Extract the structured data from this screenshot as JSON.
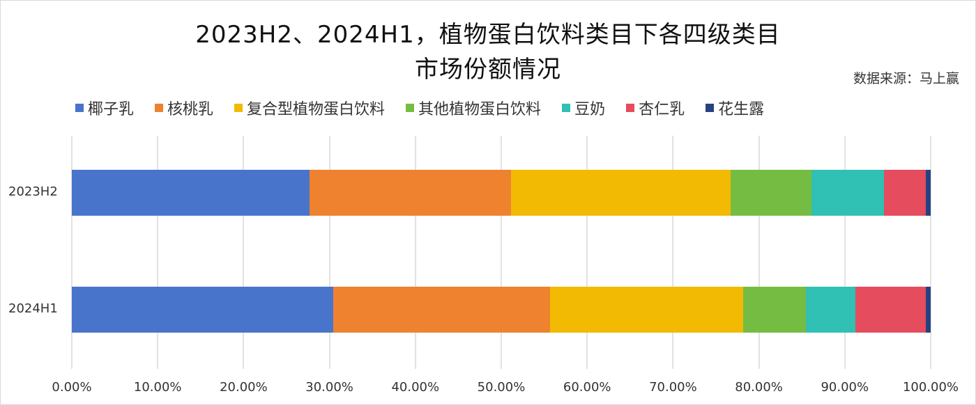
{
  "title_line1": "2023H2、2024H1，植物蛋白饮料类目下各四级类目",
  "title_line2": "市场份额情况",
  "source": "数据来源：马上赢",
  "legend": [
    {
      "label": "椰子乳",
      "color": "#4874CB"
    },
    {
      "label": "核桃乳",
      "color": "#EE822F"
    },
    {
      "label": "复合型植物蛋白饮料",
      "color": "#F2BA02"
    },
    {
      "label": "其他植物蛋白饮料",
      "color": "#75BD42"
    },
    {
      "label": "豆奶",
      "color": "#30C0B4"
    },
    {
      "label": "杏仁乳",
      "color": "#E54C5E"
    },
    {
      "label": "花生露",
      "color": "#26427F"
    }
  ],
  "y_labels": [
    "2023H2",
    "2024H1"
  ],
  "x_ticks": [
    "0.00%",
    "10.00%",
    "20.00%",
    "30.00%",
    "40.00%",
    "50.00%",
    "60.00%",
    "70.00%",
    "80.00%",
    "90.00%",
    "100.00%"
  ],
  "chart_data": {
    "type": "bar",
    "orientation": "horizontal",
    "stacked": "percent",
    "title": "2023H2、2024H1，植物蛋白饮料类目下各四级类目市场份额情况",
    "subtitle": "数据来源：马上赢",
    "categories": [
      "2023H2",
      "2024H1"
    ],
    "series": [
      {
        "name": "椰子乳",
        "values": [
          27.7,
          30.4
        ]
      },
      {
        "name": "核桃乳",
        "values": [
          23.4,
          25.3
        ]
      },
      {
        "name": "复合型植物蛋白饮料",
        "values": [
          25.6,
          22.5
        ]
      },
      {
        "name": "其他植物蛋白饮料",
        "values": [
          9.4,
          7.3
        ]
      },
      {
        "name": "豆奶",
        "values": [
          8.5,
          5.7
        ]
      },
      {
        "name": "杏仁乳",
        "values": [
          4.8,
          8.2
        ]
      },
      {
        "name": "花生露",
        "values": [
          0.6,
          0.6
        ]
      }
    ],
    "xlabel": "",
    "ylabel": "",
    "xlim": [
      0,
      100
    ],
    "x_tick_format": "0.00%",
    "grid": true,
    "legend_position": "top"
  }
}
